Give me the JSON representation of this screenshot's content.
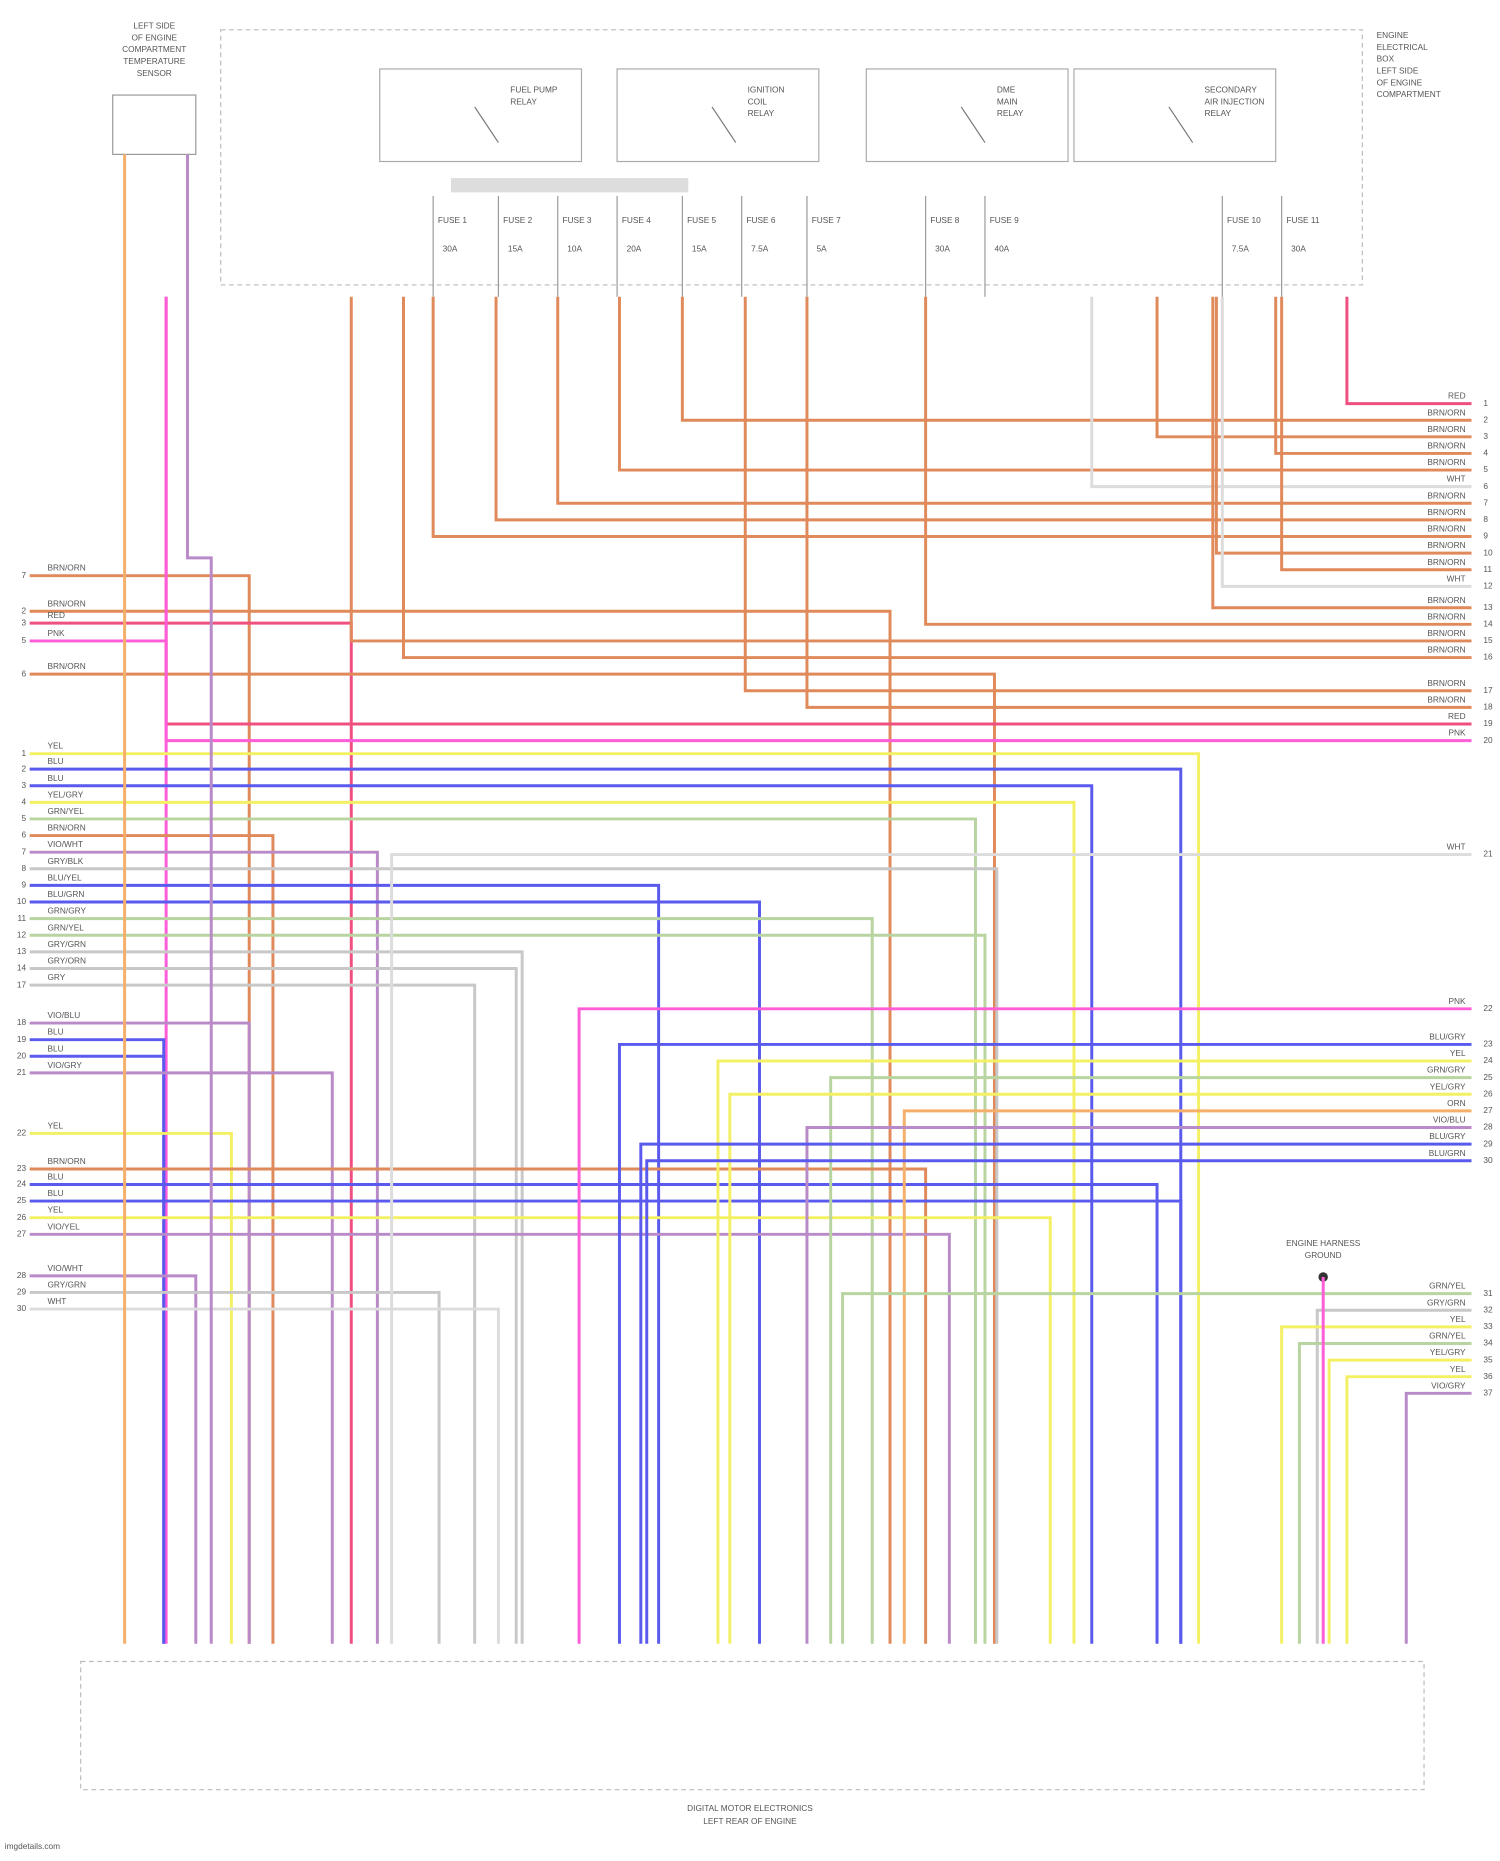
{
  "sensor": {
    "label_lines": [
      "LEFT SIDE",
      "OF ENGINE",
      "COMPARTMENT",
      "TEMPERATURE",
      "SENSOR"
    ]
  },
  "relays": [
    {
      "label_lines": [
        "FUEL PUMP",
        "RELAY"
      ]
    },
    {
      "label_lines": [
        "IGNITION",
        "COIL",
        "RELAY"
      ]
    },
    {
      "label_lines": [
        "DME",
        "MAIN",
        "RELAY"
      ]
    },
    {
      "label_lines": [
        "SECONDARY",
        "AIR INJECTION",
        "RELAY"
      ]
    }
  ],
  "power_box": {
    "label_lines": [
      "ENGINE",
      "ELECTRICAL",
      "BOX",
      "LEFT SIDE",
      "OF ENGINE",
      "COMPARTMENT"
    ]
  },
  "fuses": [
    {
      "name": "FUSE 1",
      "rating": "30A"
    },
    {
      "name": "FUSE 2",
      "rating": "15A"
    },
    {
      "name": "FUSE 3",
      "rating": "10A"
    },
    {
      "name": "FUSE 4",
      "rating": "20A"
    },
    {
      "name": "FUSE 5",
      "rating": "15A"
    },
    {
      "name": "FUSE 6",
      "rating": "7.5A"
    },
    {
      "name": "FUSE 7",
      "rating": "5A"
    },
    {
      "name": "FUSE 8",
      "rating": "30A"
    },
    {
      "name": "FUSE 9",
      "rating": "40A"
    },
    {
      "name": "FUSE 10",
      "rating": "7.5A"
    },
    {
      "name": "FUSE 11",
      "rating": "30A"
    }
  ],
  "left_wires": [
    {
      "wire": "BRN/ORN",
      "pin": "7"
    },
    {
      "wire": "BRN/ORN",
      "pin": "2"
    },
    {
      "wire": "RED",
      "pin": "3"
    },
    {
      "wire": "PNK",
      "pin": "5"
    },
    {
      "wire": "BRN/ORN",
      "pin": "6"
    },
    {
      "wire": "YEL",
      "pin": "1"
    },
    {
      "wire": "BLU",
      "pin": "2"
    },
    {
      "wire": "BLU",
      "pin": "3"
    },
    {
      "wire": "YEL/GRY",
      "pin": "4"
    },
    {
      "wire": "GRN/YEL",
      "pin": "5"
    },
    {
      "wire": "BRN/ORN",
      "pin": "6"
    },
    {
      "wire": "VIO/WHT",
      "pin": "7"
    },
    {
      "wire": "GRY/BLK",
      "pin": "8"
    },
    {
      "wire": "BLU/YEL",
      "pin": "9"
    },
    {
      "wire": "BLU/GRN",
      "pin": "10"
    },
    {
      "wire": "GRN/GRY",
      "pin": "11"
    },
    {
      "wire": "GRN/YEL",
      "pin": "12"
    },
    {
      "wire": "GRY/GRN",
      "pin": "13"
    },
    {
      "wire": "GRY/ORN",
      "pin": "14"
    },
    {
      "wire": "GRY",
      "pin": "17"
    },
    {
      "wire": "VIO/BLU",
      "pin": "18"
    },
    {
      "wire": "BLU",
      "pin": "19"
    },
    {
      "wire": "BLU",
      "pin": "20"
    },
    {
      "wire": "VIO/GRY",
      "pin": "21"
    },
    {
      "wire": "YEL",
      "pin": "22"
    },
    {
      "wire": "BRN/ORN",
      "pin": "23"
    },
    {
      "wire": "BLU",
      "pin": "24"
    },
    {
      "wire": "BLU",
      "pin": "25"
    },
    {
      "wire": "YEL",
      "pin": "26"
    },
    {
      "wire": "VIO/YEL",
      "pin": "27"
    },
    {
      "wire": "VIO/WHT",
      "pin": "28"
    },
    {
      "wire": "GRY/GRN",
      "pin": "29"
    },
    {
      "wire": "WHT",
      "pin": "30"
    }
  ],
  "right_wires": [
    {
      "wire": "RED",
      "pin": "1"
    },
    {
      "wire": "BRN/ORN",
      "pin": "2"
    },
    {
      "wire": "BRN/ORN",
      "pin": "3"
    },
    {
      "wire": "BRN/ORN",
      "pin": "4"
    },
    {
      "wire": "BRN/ORN",
      "pin": "5"
    },
    {
      "wire": "WHT",
      "pin": "6"
    },
    {
      "wire": "BRN/ORN",
      "pin": "7"
    },
    {
      "wire": "BRN/ORN",
      "pin": "8"
    },
    {
      "wire": "BRN/ORN",
      "pin": "9"
    },
    {
      "wire": "BRN/ORN",
      "pin": "10"
    },
    {
      "wire": "BRN/ORN",
      "pin": "11"
    },
    {
      "wire": "WHT",
      "pin": "12"
    },
    {
      "wire": "BRN/ORN",
      "pin": "13"
    },
    {
      "wire": "BRN/ORN",
      "pin": "14"
    },
    {
      "wire": "BRN/ORN",
      "pin": "15"
    },
    {
      "wire": "BRN/ORN",
      "pin": "16"
    },
    {
      "wire": "BRN/ORN",
      "pin": "17"
    },
    {
      "wire": "BRN/ORN",
      "pin": "18"
    },
    {
      "wire": "RED",
      "pin": "19"
    },
    {
      "wire": "PNK",
      "pin": "20"
    },
    {
      "wire": "WHT",
      "pin": "21"
    },
    {
      "wire": "PNK",
      "pin": "22"
    },
    {
      "wire": "BLU/GRY",
      "pin": "23"
    },
    {
      "wire": "YEL",
      "pin": "24"
    },
    {
      "wire": "GRN/GRY",
      "pin": "25"
    },
    {
      "wire": "YEL/GRY",
      "pin": "26"
    },
    {
      "wire": "ORN",
      "pin": "27"
    },
    {
      "wire": "VIO/BLU",
      "pin": "28"
    },
    {
      "wire": "BLU/GRY",
      "pin": "29"
    },
    {
      "wire": "BLU/GRN",
      "pin": "30"
    },
    {
      "wire": "GRN/YEL",
      "pin": "31"
    },
    {
      "wire": "GRY/GRN",
      "pin": "32"
    },
    {
      "wire": "YEL",
      "pin": "33"
    },
    {
      "wire": "GRN/YEL",
      "pin": "34"
    },
    {
      "wire": "YEL/GRY",
      "pin": "35"
    },
    {
      "wire": "YEL",
      "pin": "36"
    },
    {
      "wire": "VIO/GRY",
      "pin": "37"
    }
  ],
  "ground": {
    "label_lines": [
      "ENGINE HARNESS",
      "GROUND"
    ]
  },
  "module": {
    "label_lines": [
      "DIGITAL MOTOR ELECTRONICS",
      "LEFT REAR OF ENGINE"
    ]
  },
  "footer": "imgdetails.com"
}
